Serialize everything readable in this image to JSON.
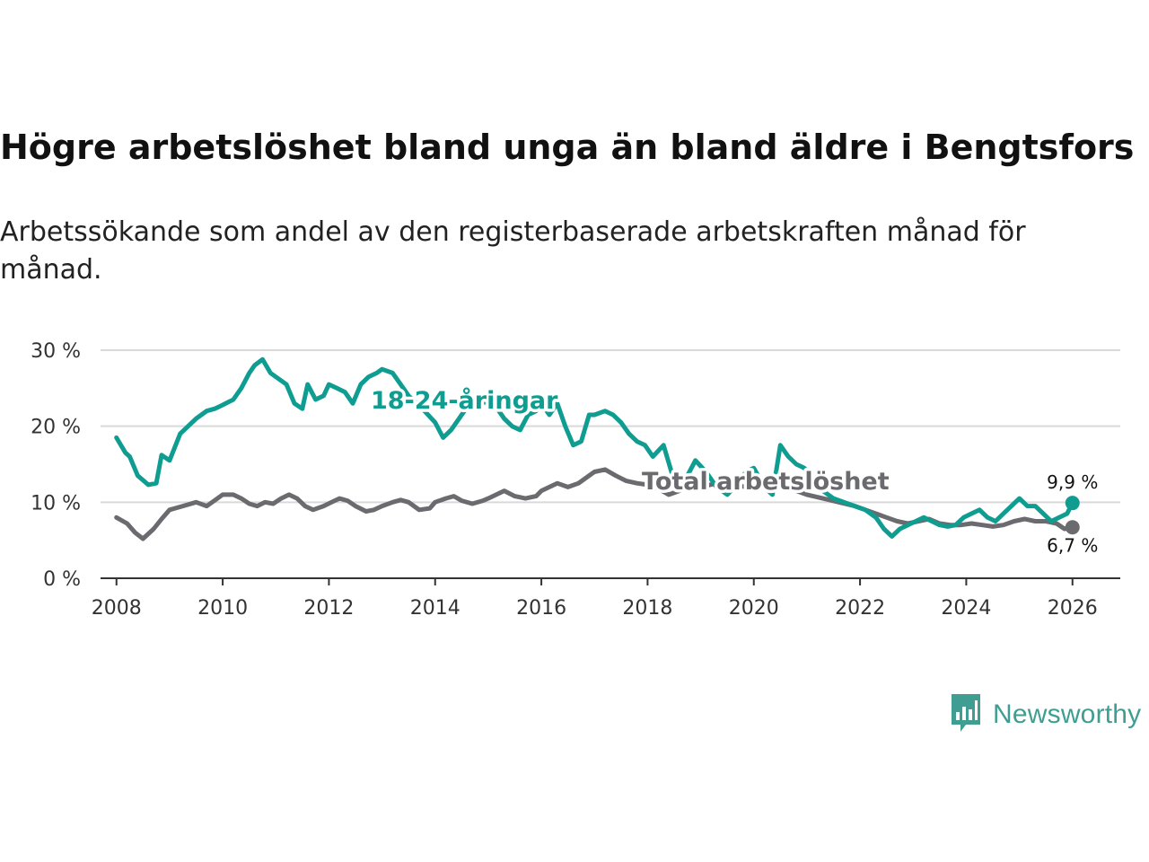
{
  "title": "Högre arbetslöshet bland unga än bland äldre i Bengtsfors",
  "subtitle": "Arbetssökande som andel av den registerbaserade arbetskraften månad för månad.",
  "brand": {
    "name": "Newsworthy",
    "color": "#3f9e91",
    "icon": "newsworthy-logo-icon"
  },
  "colors": {
    "youth": "#0e9d90",
    "total": "#6b6a6f",
    "grid": "#d9d9d9",
    "axis": "#333333"
  },
  "chart_data": {
    "type": "line",
    "title": "Högre arbetslöshet bland unga än bland äldre i Bengtsfors",
    "xlabel": "",
    "ylabel": "",
    "xlim": [
      2007.7,
      2026.9
    ],
    "ylim": [
      0,
      30
    ],
    "y_ticks": [
      0,
      10,
      20,
      30
    ],
    "y_tick_labels": [
      "0 %",
      "10 %",
      "20 %",
      "30 %"
    ],
    "x_ticks": [
      2008,
      2010,
      2012,
      2014,
      2016,
      2018,
      2020,
      2022,
      2024,
      2026
    ],
    "x_tick_labels": [
      "2008",
      "2010",
      "2012",
      "2014",
      "2016",
      "2018",
      "2020",
      "2022",
      "2024",
      "2026"
    ],
    "grid": true,
    "series": [
      {
        "name": "18-24-åringar",
        "label": "18-24-åringar",
        "end_label": "9,9 %",
        "x": [
          2008.0,
          2008.17,
          2008.25,
          2008.4,
          2008.6,
          2008.75,
          2008.85,
          2009.0,
          2009.2,
          2009.5,
          2009.7,
          2009.85,
          2010.0,
          2010.2,
          2010.35,
          2010.5,
          2010.6,
          2010.75,
          2010.9,
          2011.0,
          2011.2,
          2011.35,
          2011.5,
          2011.6,
          2011.75,
          2011.9,
          2012.0,
          2012.15,
          2012.3,
          2012.45,
          2012.6,
          2012.75,
          2012.9,
          2013.0,
          2013.2,
          2013.35,
          2013.5,
          2013.65,
          2013.8,
          2014.0,
          2014.15,
          2014.3,
          2014.45,
          2014.6,
          2014.8,
          2015.0,
          2015.15,
          2015.3,
          2015.45,
          2015.6,
          2015.75,
          2015.9,
          2016.0,
          2016.15,
          2016.3,
          2016.45,
          2016.6,
          2016.75,
          2016.9,
          2017.0,
          2017.2,
          2017.35,
          2017.5,
          2017.65,
          2017.8,
          2017.95,
          2018.1,
          2018.3,
          2018.45,
          2018.6,
          2018.75,
          2018.9,
          2019.1,
          2019.3,
          2019.5,
          2019.7,
          2019.85,
          2020.0,
          2020.2,
          2020.35,
          2020.5,
          2020.65,
          2020.8,
          2020.95,
          2021.1,
          2021.3,
          2021.5,
          2021.7,
          2021.9,
          2022.1,
          2022.3,
          2022.45,
          2022.6,
          2022.75,
          2022.9,
          2023.05,
          2023.2,
          2023.35,
          2023.5,
          2023.65,
          2023.8,
          2023.95,
          2024.1,
          2024.25,
          2024.4,
          2024.55,
          2024.7,
          2024.85,
          2025.0,
          2025.15,
          2025.3,
          2025.45,
          2025.6,
          2025.75,
          2025.9,
          2026.0
        ],
        "y": [
          18.5,
          16.5,
          16.0,
          13.5,
          12.3,
          12.5,
          16.2,
          15.5,
          19.0,
          21.0,
          22.0,
          22.3,
          22.8,
          23.5,
          25.0,
          27.0,
          28.0,
          28.8,
          27.0,
          26.5,
          25.5,
          23.0,
          22.3,
          25.5,
          23.5,
          24.0,
          25.5,
          25.0,
          24.5,
          23.0,
          25.5,
          26.5,
          27.0,
          27.5,
          27.0,
          25.5,
          24.0,
          23.0,
          22.0,
          20.5,
          18.5,
          19.5,
          21.0,
          22.5,
          23.0,
          23.2,
          22.5,
          21.0,
          20.0,
          19.5,
          21.5,
          22.0,
          23.0,
          21.5,
          23.0,
          20.0,
          17.5,
          18.0,
          21.5,
          21.5,
          22.0,
          21.5,
          20.5,
          19.0,
          18.0,
          17.5,
          16.0,
          17.5,
          14.0,
          12.0,
          13.5,
          15.5,
          14.0,
          12.0,
          11.0,
          12.5,
          14.0,
          14.5,
          12.0,
          11.0,
          17.5,
          16.0,
          15.0,
          14.5,
          13.0,
          11.5,
          10.5,
          10.0,
          9.5,
          9.0,
          8.0,
          6.5,
          5.5,
          6.5,
          7.0,
          7.5,
          8.0,
          7.5,
          7.0,
          6.8,
          7.0,
          8.0,
          8.5,
          9.0,
          8.0,
          7.5,
          8.5,
          9.5,
          10.5,
          9.5,
          9.5,
          8.5,
          7.5,
          8.0,
          8.5,
          9.9
        ]
      },
      {
        "name": "Total arbetslöshet",
        "label": "Total arbetslöshet",
        "end_label": "6,7 %",
        "x": [
          2008.0,
          2008.2,
          2008.35,
          2008.5,
          2008.7,
          2008.85,
          2009.0,
          2009.25,
          2009.5,
          2009.7,
          2009.9,
          2010.0,
          2010.2,
          2010.35,
          2010.5,
          2010.65,
          2010.8,
          2010.95,
          2011.1,
          2011.25,
          2011.4,
          2011.55,
          2011.7,
          2011.9,
          2012.05,
          2012.2,
          2012.35,
          2012.5,
          2012.7,
          2012.85,
          2013.0,
          2013.2,
          2013.35,
          2013.5,
          2013.7,
          2013.9,
          2014.0,
          2014.2,
          2014.35,
          2014.5,
          2014.7,
          2014.9,
          2015.0,
          2015.15,
          2015.3,
          2015.5,
          2015.7,
          2015.9,
          2016.0,
          2016.15,
          2016.3,
          2016.5,
          2016.7,
          2016.9,
          2017.0,
          2017.2,
          2017.4,
          2017.6,
          2017.8,
          2018.0,
          2018.2,
          2018.4,
          2018.6,
          2018.8,
          2019.0,
          2019.3,
          2019.6,
          2019.9,
          2020.2,
          2020.5,
          2020.8,
          2021.0,
          2021.3,
          2021.6,
          2021.9,
          2022.1,
          2022.3,
          2022.5,
          2022.7,
          2022.9,
          2023.1,
          2023.3,
          2023.5,
          2023.7,
          2023.9,
          2024.1,
          2024.3,
          2024.5,
          2024.7,
          2024.9,
          2025.1,
          2025.3,
          2025.5,
          2025.7,
          2025.85,
          2026.0
        ],
        "y": [
          8.0,
          7.2,
          6.0,
          5.2,
          6.5,
          7.8,
          9.0,
          9.5,
          10.0,
          9.5,
          10.5,
          11.0,
          11.0,
          10.5,
          9.8,
          9.5,
          10.0,
          9.8,
          10.5,
          11.0,
          10.5,
          9.5,
          9.0,
          9.5,
          10.0,
          10.5,
          10.2,
          9.5,
          8.8,
          9.0,
          9.5,
          10.0,
          10.3,
          10.0,
          9.0,
          9.2,
          10.0,
          10.5,
          10.8,
          10.2,
          9.8,
          10.2,
          10.5,
          11.0,
          11.5,
          10.8,
          10.5,
          10.8,
          11.5,
          12.0,
          12.5,
          12.0,
          12.5,
          13.5,
          14.0,
          14.3,
          13.5,
          12.8,
          12.5,
          12.3,
          11.8,
          11.0,
          11.5,
          12.0,
          12.0,
          12.5,
          12.2,
          12.0,
          12.5,
          12.0,
          11.5,
          11.0,
          10.5,
          10.0,
          9.5,
          9.0,
          8.5,
          8.0,
          7.5,
          7.2,
          7.5,
          7.8,
          7.2,
          7.0,
          7.0,
          7.2,
          7.0,
          6.8,
          7.0,
          7.5,
          7.8,
          7.5,
          7.5,
          7.2,
          6.5,
          6.7
        ]
      }
    ]
  }
}
